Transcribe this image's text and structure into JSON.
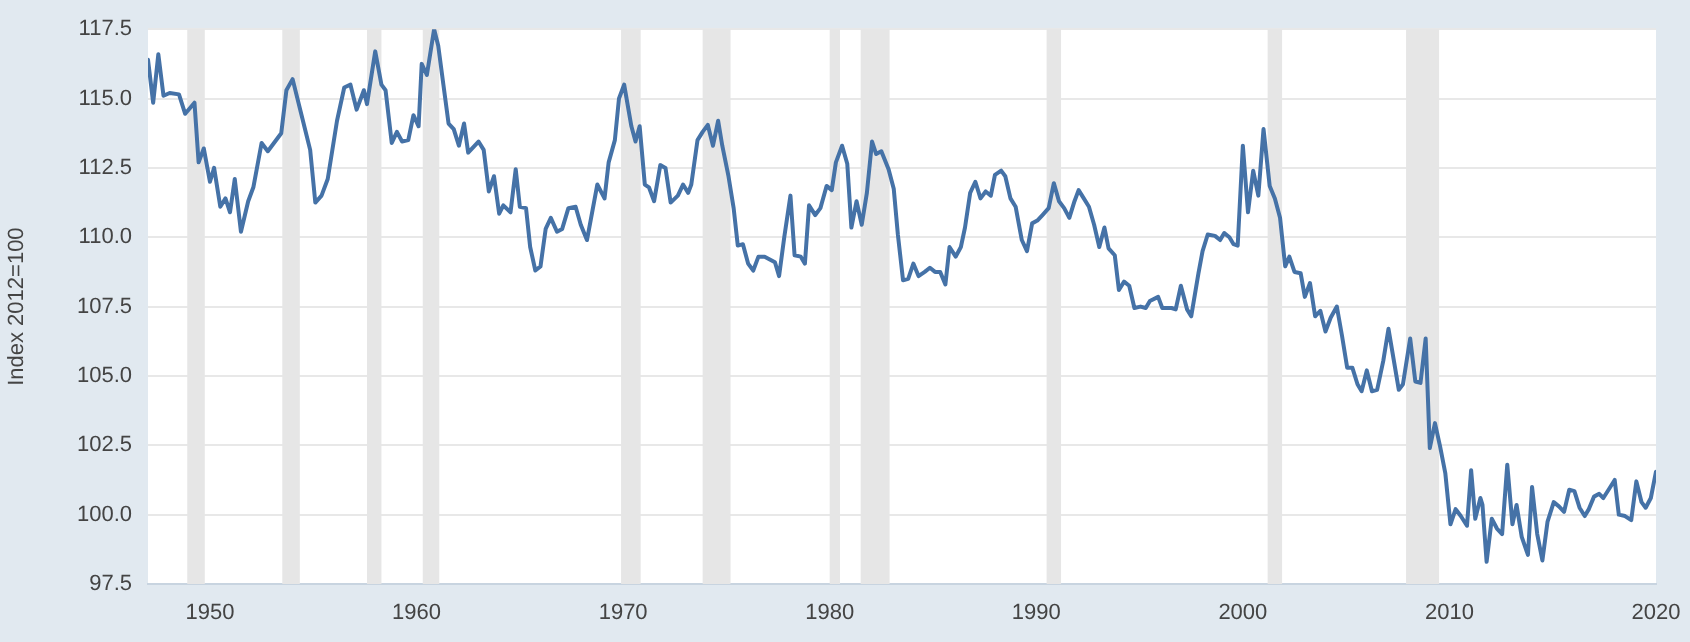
{
  "chart_data": {
    "type": "line",
    "ylabel": "Index 2012=100",
    "xlim": [
      1947,
      2020
    ],
    "xticks": [
      1950,
      1960,
      1970,
      1980,
      1990,
      2000,
      2010,
      2020
    ],
    "ylim": [
      97.5,
      117.5
    ],
    "yticks": [
      97.5,
      {
        "value": 100,
        "label": "100.0"
      },
      102.5,
      {
        "value": 105,
        "label": "105.0"
      },
      107.5,
      {
        "value": 110,
        "label": "110.0"
      },
      112.5,
      {
        "value": 115,
        "label": "115.0"
      },
      117.5
    ],
    "grid": "y",
    "legend": false,
    "marker": "none",
    "line_style": "solid",
    "bands": [
      {
        "axis": "x",
        "from": 1948.9,
        "to": 1949.75,
        "color": "#e6e6e6"
      },
      {
        "axis": "x",
        "from": 1953.5,
        "to": 1954.35,
        "color": "#e6e6e6"
      },
      {
        "axis": "x",
        "from": 1957.6,
        "to": 1958.3,
        "color": "#e6e6e6"
      },
      {
        "axis": "x",
        "from": 1960.3,
        "to": 1961.1,
        "color": "#e6e6e6"
      },
      {
        "axis": "x",
        "from": 1969.9,
        "to": 1970.85,
        "color": "#e6e6e6"
      },
      {
        "axis": "x",
        "from": 1973.85,
        "to": 1975.2,
        "color": "#e6e6e6"
      },
      {
        "axis": "x",
        "from": 1980.0,
        "to": 1980.5,
        "color": "#e6e6e6"
      },
      {
        "axis": "x",
        "from": 1981.5,
        "to": 1982.9,
        "color": "#e6e6e6"
      },
      {
        "axis": "x",
        "from": 1990.5,
        "to": 1991.2,
        "color": "#e6e6e6"
      },
      {
        "axis": "x",
        "from": 2001.2,
        "to": 2001.9,
        "color": "#e6e6e6"
      },
      {
        "axis": "x",
        "from": 2007.9,
        "to": 2009.5,
        "color": "#e6e6e6"
      }
    ],
    "series": [
      {
        "color": "#4572a7",
        "x": [
          1947.0,
          1947.25,
          1947.5,
          1947.75,
          1948.05,
          1948.5,
          1948.8,
          1949.25,
          1949.45,
          1949.7,
          1950.0,
          1950.2,
          1950.5,
          1950.75,
          1950.97,
          1951.2,
          1951.5,
          1951.85,
          1952.1,
          1952.5,
          1952.8,
          1953.45,
          1953.7,
          1954.0,
          1954.5,
          1954.85,
          1955.1,
          1955.4,
          1955.7,
          1956.15,
          1956.5,
          1956.8,
          1957.1,
          1957.45,
          1957.6,
          1958.0,
          1958.3,
          1958.5,
          1958.8,
          1959.05,
          1959.3,
          1959.6,
          1959.85,
          1960.1,
          1960.25,
          1960.5,
          1960.85,
          1961.05,
          1961.3,
          1961.55,
          1961.8,
          1962.05,
          1962.3,
          1962.5,
          1963.0,
          1963.25,
          1963.5,
          1963.75,
          1964.0,
          1964.2,
          1964.55,
          1964.8,
          1965.0,
          1965.3,
          1965.5,
          1965.75,
          1966.0,
          1966.25,
          1966.5,
          1966.8,
          1967.05,
          1967.35,
          1967.7,
          1967.95,
          1968.25,
          1968.75,
          1969.1,
          1969.3,
          1969.6,
          1969.8,
          1970.05,
          1970.4,
          1970.6,
          1970.8,
          1971.05,
          1971.25,
          1971.5,
          1971.8,
          1972.05,
          1972.3,
          1972.65,
          1972.9,
          1973.15,
          1973.3,
          1973.6,
          1973.85,
          1974.1,
          1974.35,
          1974.6,
          1974.8,
          1975.1,
          1975.35,
          1975.55,
          1975.8,
          1976.05,
          1976.3,
          1976.55,
          1976.85,
          1977.1,
          1977.35,
          1977.55,
          1977.8,
          1978.1,
          1978.3,
          1978.6,
          1978.8,
          1979.0,
          1979.3,
          1979.55,
          1979.85,
          1980.1,
          1980.3,
          1980.6,
          1980.85,
          1981.05,
          1981.3,
          1981.55,
          1981.8,
          1982.05,
          1982.25,
          1982.5,
          1982.85,
          1983.1,
          1983.3,
          1983.55,
          1983.8,
          1984.05,
          1984.3,
          1984.6,
          1984.85,
          1985.1,
          1985.35,
          1985.6,
          1985.8,
          1986.1,
          1986.35,
          1986.55,
          1986.8,
          1987.05,
          1987.3,
          1987.55,
          1987.8,
          1988.0,
          1988.3,
          1988.5,
          1988.75,
          1989.0,
          1989.3,
          1989.55,
          1989.8,
          1990.05,
          1990.3,
          1990.6,
          1990.85,
          1991.1,
          1991.35,
          1991.6,
          1991.85,
          1992.05,
          1992.3,
          1992.55,
          1992.8,
          1993.05,
          1993.3,
          1993.5,
          1993.8,
          1994.0,
          1994.25,
          1994.5,
          1994.75,
          1995.05,
          1995.3,
          1995.5,
          1995.9,
          1996.1,
          1996.55,
          1996.75,
          1997.0,
          1997.3,
          1997.5,
          1997.85,
          1998.05,
          1998.3,
          1998.65,
          1998.9,
          1999.1,
          1999.35,
          1999.55,
          1999.75,
          2000.0,
          2000.25,
          2000.5,
          2000.75,
          2001.0,
          2001.3,
          2001.55,
          2001.8,
          2002.05,
          2002.25,
          2002.5,
          2002.8,
          2003.0,
          2003.25,
          2003.5,
          2003.75,
          2004.0,
          2004.25,
          2004.55,
          2004.8,
          2005.05,
          2005.3,
          2005.55,
          2005.75,
          2006.0,
          2006.25,
          2006.5,
          2006.8,
          2007.05,
          2007.3,
          2007.55,
          2007.75,
          2008.1,
          2008.35,
          2008.6,
          2008.85,
          2009.05,
          2009.3,
          2009.55,
          2009.8,
          2010.05,
          2010.3,
          2010.55,
          2010.85,
          2011.05,
          2011.25,
          2011.5,
          2011.6,
          2011.8,
          2012.05,
          2012.3,
          2012.55,
          2012.8,
          2013.05,
          2013.25,
          2013.5,
          2013.8,
          2014.0,
          2014.25,
          2014.5,
          2014.75,
          2015.05,
          2015.3,
          2015.55,
          2015.8,
          2016.05,
          2016.3,
          2016.55,
          2016.75,
          2017.0,
          2017.25,
          2017.45,
          2017.75,
          2018.0,
          2018.2,
          2018.5,
          2018.8,
          2019.05,
          2019.3,
          2019.5,
          2019.75,
          2020.0
        ],
        "values": [
          116.4,
          114.85,
          116.6,
          115.1,
          115.2,
          115.15,
          114.45,
          114.85,
          112.7,
          113.2,
          112.0,
          112.5,
          111.1,
          111.4,
          110.9,
          112.1,
          110.2,
          111.3,
          111.8,
          113.4,
          113.1,
          113.75,
          115.3,
          115.7,
          114.2,
          113.15,
          111.25,
          111.5,
          112.1,
          114.2,
          115.4,
          115.5,
          114.6,
          115.3,
          114.8,
          116.7,
          115.5,
          115.3,
          113.4,
          113.8,
          113.45,
          113.5,
          114.4,
          114.0,
          116.25,
          115.85,
          117.5,
          116.9,
          115.5,
          114.1,
          113.9,
          113.3,
          114.1,
          113.05,
          113.45,
          113.15,
          111.65,
          112.2,
          110.85,
          111.15,
          110.9,
          112.45,
          111.1,
          111.05,
          109.65,
          108.8,
          108.95,
          110.3,
          110.7,
          110.2,
          110.3,
          111.05,
          111.1,
          110.45,
          109.9,
          111.9,
          111.4,
          112.7,
          113.5,
          115.0,
          115.5,
          114.0,
          113.45,
          114.0,
          111.9,
          111.8,
          111.3,
          112.6,
          112.5,
          111.25,
          111.5,
          111.9,
          111.6,
          111.9,
          113.5,
          113.8,
          114.05,
          113.3,
          114.2,
          113.3,
          112.2,
          111.05,
          109.7,
          109.75,
          109.05,
          108.8,
          109.3,
          109.3,
          109.2,
          109.1,
          108.6,
          110.0,
          111.5,
          109.35,
          109.3,
          109.05,
          111.15,
          110.8,
          111.05,
          111.85,
          111.7,
          112.7,
          113.3,
          112.65,
          110.35,
          111.3,
          110.45,
          111.6,
          113.45,
          113.0,
          113.1,
          112.45,
          111.75,
          110.1,
          108.45,
          108.5,
          109.05,
          108.6,
          108.75,
          108.9,
          108.75,
          108.75,
          108.3,
          109.65,
          109.3,
          109.65,
          110.35,
          111.6,
          112.0,
          111.4,
          111.65,
          111.5,
          112.25,
          112.4,
          112.2,
          111.4,
          111.1,
          109.9,
          109.5,
          110.5,
          110.6,
          110.8,
          111.05,
          111.95,
          111.3,
          111.05,
          110.7,
          111.3,
          111.7,
          111.4,
          111.1,
          110.45,
          109.65,
          110.35,
          109.6,
          109.35,
          108.1,
          108.4,
          108.25,
          107.45,
          107.5,
          107.45,
          107.7,
          107.85,
          107.45,
          107.45,
          107.4,
          108.25,
          107.4,
          107.15,
          108.7,
          109.5,
          110.1,
          110.05,
          109.9,
          110.15,
          110.0,
          109.75,
          109.7,
          113.3,
          110.9,
          112.4,
          111.5,
          113.9,
          111.85,
          111.4,
          110.7,
          108.95,
          109.3,
          108.75,
          108.7,
          107.85,
          108.35,
          107.15,
          107.35,
          106.6,
          107.1,
          107.5,
          106.45,
          105.3,
          105.3,
          104.7,
          104.45,
          105.2,
          104.45,
          104.5,
          105.55,
          106.7,
          105.6,
          104.5,
          104.7,
          106.35,
          104.8,
          104.75,
          106.35,
          102.4,
          103.3,
          102.45,
          101.5,
          99.65,
          100.2,
          99.95,
          99.6,
          101.6,
          99.85,
          100.6,
          100.35,
          98.3,
          99.85,
          99.5,
          99.3,
          101.8,
          99.65,
          100.35,
          99.2,
          98.55,
          101.0,
          99.3,
          98.35,
          99.75,
          100.45,
          100.3,
          100.1,
          100.9,
          100.85,
          100.25,
          99.95,
          100.2,
          100.65,
          100.75,
          100.6,
          100.95,
          101.25,
          100.0,
          99.95,
          99.8,
          101.2,
          100.45,
          100.25,
          100.6,
          101.55
        ]
      }
    ]
  }
}
